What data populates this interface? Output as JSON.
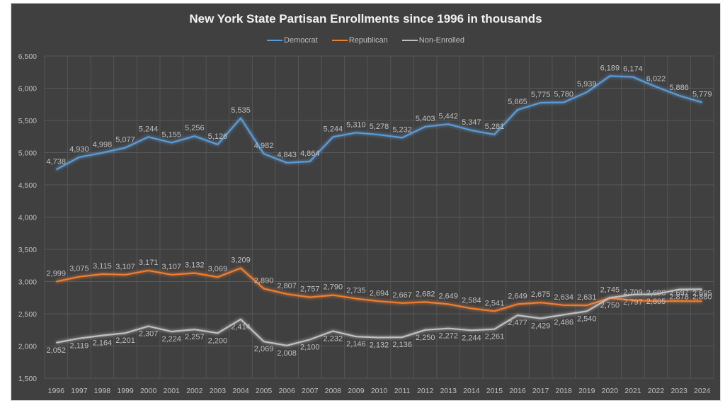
{
  "chart_data": {
    "type": "line",
    "title": "New York State Partisan Enrollments since 1996 in thousands",
    "xlabel": "",
    "ylabel": "",
    "ylim": [
      1500,
      6500
    ],
    "yticks": [
      "1,500",
      "2,000",
      "2,500",
      "3,000",
      "3,500",
      "4,000",
      "4,500",
      "5,000",
      "5,500",
      "6,000",
      "6,500"
    ],
    "ytick_values": [
      1500,
      2000,
      2500,
      3000,
      3500,
      4000,
      4500,
      5000,
      5500,
      6000,
      6500
    ],
    "grid": true,
    "legend_position": "top-center",
    "categories": [
      "1996",
      "1997",
      "1998",
      "1999",
      "2000",
      "2001",
      "2002",
      "2003",
      "2004",
      "2005",
      "2006",
      "2007",
      "2008",
      "2009",
      "2010",
      "2011",
      "2012",
      "2013",
      "2014",
      "2015",
      "2016",
      "2017",
      "2018",
      "2019",
      "2020",
      "2021",
      "2022",
      "2023",
      "2024"
    ],
    "series": [
      {
        "name": "Democrat",
        "color": "#5b9bd5",
        "label_position": "above",
        "values": [
          4738,
          4930,
          4998,
          5077,
          5244,
          5155,
          5256,
          5126,
          5535,
          4982,
          4843,
          4864,
          5244,
          5310,
          5278,
          5232,
          5403,
          5442,
          5347,
          5281,
          5665,
          5775,
          5780,
          5939,
          6189,
          6174,
          6022,
          5886,
          5779
        ],
        "labels": [
          "4,738",
          "4,930",
          "4,998",
          "5,077",
          "5,244",
          "5,155",
          "5,256",
          "5,126",
          "5,535",
          "4,982",
          "4,843",
          "4,864",
          "5,244",
          "5,310",
          "5,278",
          "5,232",
          "5,403",
          "5,442",
          "5,347",
          "5,281",
          "5,665",
          "5,775",
          "5,780",
          "5,939",
          "6,189",
          "6,174",
          "6,022",
          "5,886",
          "5,779"
        ]
      },
      {
        "name": "Republican",
        "color": "#ed7d31",
        "label_position": "above",
        "values": [
          2999,
          3075,
          3115,
          3107,
          3171,
          3107,
          3132,
          3069,
          3209,
          2890,
          2807,
          2757,
          2790,
          2735,
          2694,
          2667,
          2682,
          2649,
          2584,
          2541,
          2649,
          2675,
          2634,
          2631,
          2745,
          2709,
          2696,
          2697,
          2695
        ],
        "labels": [
          "2,999",
          "3,075",
          "3,115",
          "3,107",
          "3,171",
          "3,107",
          "3,132",
          "3,069",
          "3,209",
          "2,890",
          "2,807",
          "2,757",
          "2,790",
          "2,735",
          "2,694",
          "2,667",
          "2,682",
          "2,649",
          "2,584",
          "2,541",
          "2,649",
          "2,675",
          "2,634",
          "2,631",
          "2,745",
          "2,709",
          "2,696",
          "2,697",
          "2,695"
        ]
      },
      {
        "name": "Non-Enrolled",
        "color": "#bfbfbf",
        "label_position": "below",
        "values": [
          2052,
          2119,
          2164,
          2201,
          2307,
          2224,
          2257,
          2200,
          2414,
          2069,
          2008,
          2100,
          2232,
          2146,
          2132,
          2136,
          2250,
          2272,
          2244,
          2261,
          2477,
          2429,
          2486,
          2540,
          2750,
          2797,
          2805,
          2878,
          2880
        ],
        "labels": [
          "2,052",
          "2,119",
          "2,164",
          "2,201",
          "2,307",
          "2,224",
          "2,257",
          "2,200",
          "2,414",
          "2,069",
          "2,008",
          "2,100",
          "2,232",
          "2,146",
          "2,132",
          "2,136",
          "2,250",
          "2,272",
          "2,244",
          "2,261",
          "2,477",
          "2,429",
          "2,486",
          "2,540",
          "2,750",
          "2,797",
          "2,805",
          "2,878",
          "2,880"
        ]
      }
    ]
  }
}
